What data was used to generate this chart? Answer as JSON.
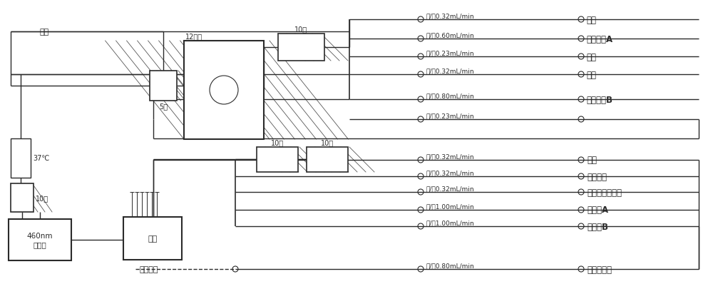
{
  "bg_color": "#ffffff",
  "line_color": "#2b2b2b",
  "upper_tube_labels": [
    "黑/黑0.32mL/min",
    "白/白0.60mL/min",
    "橙/白0.23mL/min",
    "黑/黑0.32mL/min",
    "红/红0.80mL/min",
    "橙/白0.23mL/min"
  ],
  "upper_right_labels": [
    "空气",
    "缓冲溶液A",
    "样品",
    "空气",
    "缓冲溶液B",
    ""
  ],
  "lower_tube_labels": [
    "黑/黑0.32mL/min",
    "黑/黑0.32mL/min",
    "黑/黑0.32mL/min",
    "灰/灰1.00mL/min",
    "灰/灰1.00mL/min",
    "红/红0.80mL/min"
  ],
  "lower_right_labels": [
    "空气",
    "硫氰化钾",
    "二氯异氰尿酸钠",
    "解毒液A",
    "解毒液B",
    "水或萃取液"
  ],
  "label_waste1": "废液",
  "label_waste2": "废液",
  "label_12": "12英寸",
  "label_5": "5匝",
  "label_10_upper": "10匝",
  "label_10a": "10匝",
  "label_10b": "10匝",
  "label_10c": "10匝",
  "label_37": "37℃",
  "label_460": "460nm\n比色计",
  "label_sampler": "到取样器"
}
